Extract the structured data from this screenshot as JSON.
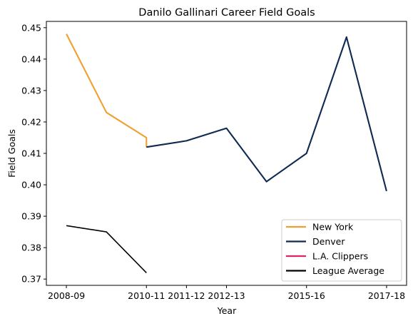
{
  "chart_data": {
    "type": "line",
    "title": "Danilo Gallinari Career Field Goals",
    "xlabel": "Year",
    "ylabel": "Field Goals",
    "xlim": [
      -0.5,
      8.5
    ],
    "ylim": [
      0.368,
      0.452
    ],
    "x_tick_values": [
      0,
      2.5,
      4.5,
      6.5,
      7.5,
      8.5
    ],
    "x_tick_labels_at": [
      0,
      2,
      3,
      4,
      6,
      8
    ],
    "x_tick_labels": [
      "2008-09",
      "2010-11",
      "2011-12",
      "2012-13",
      "2015-16",
      "2017-18"
    ],
    "y_ticks": [
      0.37,
      0.38,
      0.39,
      0.4,
      0.41,
      0.42,
      0.43,
      0.44,
      0.45
    ],
    "y_tick_labels": [
      "0.37",
      "0.38",
      "0.39",
      "0.40",
      "0.41",
      "0.42",
      "0.43",
      "0.44",
      "0.45"
    ],
    "grid": false,
    "legend_position": "lower-right",
    "series": [
      {
        "name": "New York",
        "color": "#f0a030",
        "x": [
          0,
          1,
          2,
          2
        ],
        "y": [
          0.448,
          0.423,
          0.415,
          0.412
        ]
      },
      {
        "name": "Denver",
        "color": "#0e2a52",
        "x": [
          2,
          3,
          4,
          5,
          6,
          7,
          8
        ],
        "y": [
          0.412,
          0.414,
          0.418,
          0.401,
          0.41,
          0.447,
          0.398
        ]
      },
      {
        "name": "L.A. Clippers",
        "color": "#e0245e",
        "x": [],
        "y": []
      },
      {
        "name": "League Average",
        "color": "#000000",
        "x": [
          0,
          1,
          2
        ],
        "y": [
          0.387,
          0.385,
          0.372
        ]
      }
    ]
  }
}
